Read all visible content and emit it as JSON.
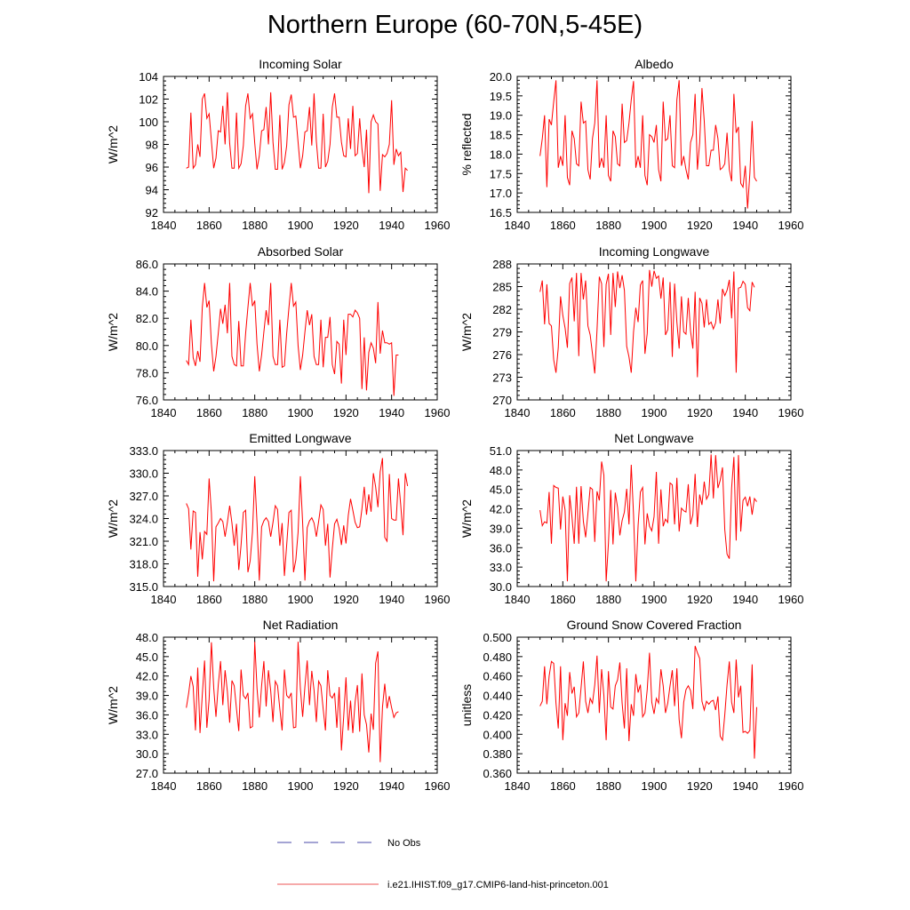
{
  "title": "Northern Europe (60-70N,5-45E)",
  "legend": [
    {
      "label": "No Obs",
      "color": "#4a4aa8",
      "dash": "dashed"
    },
    {
      "label": "i.e21.IHIST.f09_g17.CMIP6-land-hist-princeton.001",
      "color": "#ee5555",
      "dash": "solid"
    }
  ],
  "chart_data": [
    {
      "type": "line",
      "title": "Incoming Solar",
      "ylabel": "W/m^2",
      "xlim": [
        1840,
        1960
      ],
      "ylim": [
        92,
        104
      ],
      "xticks": [
        1840,
        1860,
        1880,
        1900,
        1920,
        1940,
        1960
      ],
      "yticks": [
        "92",
        "94",
        "96",
        "98",
        "100",
        "102",
        "104"
      ],
      "x_start": 1850,
      "values": [
        95.9,
        96.0,
        100.8,
        95.9,
        96.2,
        98.0,
        96.9,
        102.0,
        102.5,
        100.3,
        100.7,
        98.3,
        95.9,
        96.8,
        99.2,
        99.1,
        101.4,
        98.0,
        102.6,
        98.1,
        95.9,
        95.9,
        100.8,
        95.9,
        96.3,
        97.9,
        101.4,
        102.5,
        100.3,
        100.7,
        98.1,
        95.8,
        97.0,
        99.2,
        99.3,
        101.3,
        98.0,
        102.6,
        98.2,
        95.8,
        95.8,
        100.6,
        95.8,
        96.4,
        97.9,
        101.5,
        102.4,
        100.4,
        100.5,
        98.2,
        95.9,
        97.0,
        99.1,
        99.2,
        101.3,
        97.9,
        102.5,
        98.3,
        95.9,
        95.9,
        100.7,
        96.0,
        96.5,
        98.0,
        101.3,
        102.5,
        100.4,
        100.4,
        98.2,
        97.0,
        96.9,
        100.3,
        97.6,
        101.4,
        97.0,
        97.2,
        100.3,
        97.6,
        96.0,
        99.3,
        93.7,
        100.0,
        100.6,
        100.0,
        99.8,
        93.9,
        97.1,
        96.9,
        97.2,
        98.0,
        101.9,
        96.2,
        97.6,
        97.0,
        97.3,
        93.8,
        95.9,
        95.7
      ]
    },
    {
      "type": "line",
      "title": "Albedo",
      "ylabel": "% reflected",
      "xlim": [
        1840,
        1960
      ],
      "ylim": [
        16.5,
        20.0
      ],
      "xticks": [
        1840,
        1860,
        1880,
        1900,
        1920,
        1940,
        1960
      ],
      "yticks": [
        "16.5",
        "17.0",
        "17.5",
        "18.0",
        "18.5",
        "19.0",
        "19.5",
        "20.0"
      ],
      "x_start": 1850,
      "values": [
        17.95,
        18.4,
        19.0,
        17.15,
        18.9,
        18.75,
        19.35,
        19.9,
        17.65,
        17.95,
        17.7,
        19.0,
        17.4,
        17.2,
        18.6,
        18.4,
        17.75,
        17.7,
        19.35,
        18.8,
        18.85,
        17.6,
        17.35,
        18.4,
        18.8,
        19.9,
        17.65,
        17.9,
        17.65,
        19.0,
        17.45,
        17.3,
        18.6,
        18.45,
        17.75,
        17.7,
        19.3,
        18.3,
        18.35,
        18.8,
        19.4,
        19.88,
        17.65,
        17.95,
        17.65,
        19.0,
        17.45,
        17.2,
        18.5,
        18.45,
        18.3,
        18.75,
        17.6,
        17.3,
        19.35,
        18.35,
        18.4,
        19.0,
        17.7,
        17.65,
        19.4,
        19.9,
        17.7,
        17.95,
        17.6,
        17.35,
        18.3,
        18.5,
        19.55,
        17.6,
        18.3,
        19.7,
        18.85,
        17.7,
        17.7,
        18.1,
        18.1,
        18.75,
        18.4,
        17.6,
        17.65,
        17.75,
        18.55,
        17.6,
        17.3,
        19.55,
        18.55,
        18.7,
        17.25,
        17.15,
        17.7,
        16.6,
        17.5,
        18.85,
        17.4,
        17.3
      ]
    },
    {
      "type": "line",
      "title": "Absorbed Solar",
      "ylabel": "W/m^2",
      "xlim": [
        1840,
        1960
      ],
      "ylim": [
        76.0,
        86.0
      ],
      "xticks": [
        1840,
        1860,
        1880,
        1900,
        1920,
        1940,
        1960
      ],
      "yticks": [
        "76.0",
        "78.0",
        "80.0",
        "82.0",
        "84.0",
        "86.0"
      ],
      "x_start": 1850,
      "values": [
        78.9,
        78.6,
        81.9,
        79.1,
        78.5,
        79.6,
        78.8,
        82.8,
        84.6,
        82.8,
        83.3,
        80.1,
        78.1,
        79.2,
        80.9,
        82.7,
        81.6,
        83.0,
        80.9,
        84.6,
        79.2,
        78.6,
        78.5,
        81.8,
        78.5,
        78.5,
        80.9,
        82.8,
        84.6,
        82.9,
        83.3,
        80.1,
        78.1,
        79.3,
        81.0,
        82.6,
        81.5,
        84.6,
        79.2,
        78.6,
        78.6,
        81.9,
        78.4,
        78.5,
        80.9,
        82.8,
        84.6,
        82.9,
        83.2,
        80.0,
        78.2,
        79.3,
        81.0,
        82.6,
        81.5,
        82.3,
        79.2,
        78.6,
        78.6,
        81.9,
        78.4,
        80.6,
        80.6,
        82.1,
        78.6,
        77.9,
        80.3,
        80.1,
        77.2,
        81.9,
        79.3,
        82.3,
        82.3,
        82.1,
        82.6,
        82.4,
        82.0,
        76.8,
        80.6,
        76.7,
        79.5,
        80.2,
        79.8,
        78.7,
        83.2,
        79.4,
        81.1,
        80.2,
        80.2,
        80.1,
        80.2,
        76.3,
        79.3,
        79.3
      ]
    },
    {
      "type": "line",
      "title": "Incoming Longwave",
      "ylabel": "W/m^2",
      "xlim": [
        1840,
        1960
      ],
      "ylim": [
        270,
        288
      ],
      "xticks": [
        1840,
        1860,
        1880,
        1900,
        1920,
        1940,
        1960
      ],
      "yticks": [
        "270",
        "273",
        "276",
        "279",
        "282",
        "285",
        "288"
      ],
      "x_start": 1850,
      "values": [
        284.3,
        285.8,
        280.0,
        285.3,
        280.1,
        279.8,
        275.3,
        273.6,
        276.9,
        283.7,
        281.2,
        279.5,
        276.9,
        285.4,
        286.2,
        280.4,
        286.8,
        275.8,
        286.8,
        283.3,
        285.8,
        279.8,
        278.6,
        276.1,
        273.5,
        279.3,
        286.3,
        285.4,
        277.0,
        285.3,
        286.7,
        278.6,
        286.8,
        282.3,
        287.0,
        284.8,
        286.5,
        284.5,
        277.1,
        275.7,
        273.6,
        279.0,
        282.2,
        280.3,
        285.2,
        285.8,
        276.1,
        278.8,
        287.2,
        285.0,
        287.1,
        286.1,
        286.4,
        283.4,
        286.2,
        278.6,
        279.3,
        285.6,
        275.7,
        285.4,
        280.3,
        276.8,
        283.7,
        279.0,
        278.7,
        283.5,
        279.1,
        276.8,
        284.3,
        273.0,
        283.5,
        282.8,
        279.6,
        283.3,
        280.0,
        280.3,
        279.4,
        280.2,
        283.3,
        280.1,
        284.7,
        283.8,
        284.5,
        285.9,
        280.8,
        287.0,
        273.6,
        284.8,
        284.9,
        285.7,
        285.3,
        282.2,
        281.8,
        285.6,
        284.9
      ]
    },
    {
      "type": "line",
      "title": "Emitted Longwave",
      "ylabel": "W/m^2",
      "xlim": [
        1840,
        1960
      ],
      "ylim": [
        315.0,
        333.0
      ],
      "xticks": [
        1840,
        1860,
        1880,
        1900,
        1920,
        1940,
        1960
      ],
      "yticks": [
        "315.0",
        "318.0",
        "321.0",
        "324.0",
        "327.0",
        "330.0",
        "333.0"
      ],
      "x_start": 1850,
      "values": [
        326.0,
        325.3,
        319.9,
        325.0,
        324.8,
        316.3,
        322.2,
        318.6,
        322.3,
        321.9,
        329.3,
        324.7,
        315.7,
        322.9,
        323.4,
        324.0,
        323.6,
        321.6,
        323.5,
        325.7,
        323.4,
        320.4,
        323.3,
        317.2,
        320.5,
        324.8,
        325.1,
        316.9,
        318.4,
        322.2,
        329.6,
        323.4,
        315.8,
        322.9,
        323.7,
        324.1,
        323.6,
        321.6,
        323.5,
        325.7,
        325.2,
        320.4,
        323.4,
        316.4,
        320.5,
        324.8,
        325.1,
        316.9,
        318.5,
        322.2,
        329.6,
        323.4,
        315.8,
        322.8,
        323.7,
        324.1,
        323.4,
        321.6,
        323.6,
        325.8,
        325.2,
        320.4,
        323.3,
        316.2,
        320.0,
        323.3,
        323.9,
        322.7,
        320.5,
        323.1,
        320.7,
        324.4,
        326.6,
        325.1,
        323.5,
        322.8,
        322.9,
        325.3,
        328.2,
        324.5,
        327.2,
        324.9,
        330.0,
        328.2,
        325.5,
        330.2,
        332.0,
        321.5,
        321.0,
        329.9,
        324.0,
        323.8,
        323.8,
        329.3,
        325.8,
        321.8,
        330.0,
        328.3
      ]
    },
    {
      "type": "line",
      "title": "Net Longwave",
      "ylabel": "W/m^2",
      "xlim": [
        1840,
        1960
      ],
      "ylim": [
        30.0,
        51.0
      ],
      "xticks": [
        1840,
        1860,
        1880,
        1900,
        1920,
        1940,
        1960
      ],
      "yticks": [
        "30.0",
        "33.0",
        "36.0",
        "39.0",
        "42.0",
        "45.0",
        "48.0",
        "51.0"
      ],
      "x_start": 1850,
      "values": [
        41.8,
        39.4,
        40.0,
        39.8,
        44.6,
        36.6,
        45.6,
        45.3,
        45.2,
        38.8,
        43.9,
        41.8,
        30.8,
        44.1,
        40.8,
        36.6,
        45.4,
        36.6,
        45.5,
        40.1,
        37.6,
        41.3,
        45.3,
        45.0,
        36.9,
        44.7,
        43.3,
        49.3,
        47.2,
        30.8,
        36.7,
        44.9,
        36.5,
        44.5,
        42.2,
        37.9,
        40.2,
        41.5,
        45.1,
        39.6,
        48.8,
        41.1,
        30.8,
        39.4,
        44.6,
        45.3,
        36.5,
        41.3,
        39.3,
        38.6,
        40.8,
        47.7,
        36.6,
        45.0,
        39.3,
        40.4,
        39.9,
        46.0,
        45.7,
        39.6,
        46.8,
        38.5,
        42.1,
        41.7,
        41.5,
        45.8,
        39.6,
        41.1,
        47.4,
        39.2,
        44.2,
        42.6,
        46.2,
        43.5,
        44.2,
        50.4,
        43.6,
        50.3,
        45.2,
        46.4,
        48.4,
        38.8,
        35.0,
        34.3,
        45.2,
        50.0,
        37.1,
        50.3,
        38.5,
        43.3,
        43.8,
        42.4,
        43.9,
        41.1,
        43.6,
        43.1
      ]
    },
    {
      "type": "line",
      "title": "Net Radiation",
      "ylabel": "W/m^2",
      "xlim": [
        1840,
        1960
      ],
      "ylim": [
        27.0,
        48.0
      ],
      "xticks": [
        1840,
        1860,
        1880,
        1900,
        1920,
        1940,
        1960
      ],
      "yticks": [
        "27.0",
        "30.0",
        "33.0",
        "36.0",
        "39.0",
        "42.0",
        "45.0",
        "48.0"
      ],
      "x_start": 1850,
      "values": [
        37.1,
        39.3,
        42.0,
        40.4,
        33.6,
        43.3,
        33.2,
        39.1,
        44.4,
        34.0,
        38.4,
        47.2,
        40.2,
        35.7,
        40.6,
        44.3,
        37.5,
        42.9,
        39.6,
        34.8,
        41.3,
        40.5,
        36.9,
        33.5,
        43.0,
        39.0,
        38.5,
        39.4,
        34.0,
        34.2,
        47.3,
        40.1,
        35.6,
        40.5,
        44.3,
        37.3,
        42.9,
        39.7,
        34.9,
        41.2,
        40.5,
        36.9,
        33.6,
        43.0,
        39.0,
        38.6,
        39.4,
        34.0,
        34.1,
        47.3,
        40.1,
        35.7,
        40.4,
        44.4,
        37.5,
        42.8,
        39.8,
        34.9,
        41.2,
        40.5,
        36.9,
        33.6,
        42.9,
        39.0,
        38.6,
        39.4,
        34.0,
        40.3,
        30.5,
        35.8,
        41.8,
        33.6,
        38.2,
        33.2,
        38.0,
        40.6,
        33.4,
        42.4,
        36.0,
        34.5,
        30.2,
        36.2,
        33.7,
        44.0,
        45.8,
        28.7,
        37.2,
        40.8,
        37.0,
        38.9,
        37.1,
        35.6,
        36.3,
        36.5
      ]
    },
    {
      "type": "line",
      "title": "Ground Snow Covered Fraction",
      "ylabel": "unitless",
      "xlim": [
        1840,
        1960
      ],
      "ylim": [
        0.36,
        0.5
      ],
      "xticks": [
        1840,
        1860,
        1880,
        1900,
        1920,
        1940,
        1960
      ],
      "yticks": [
        "0.360",
        "0.380",
        "0.400",
        "0.420",
        "0.440",
        "0.460",
        "0.480",
        "0.500"
      ],
      "x_start": 1850,
      "values": [
        0.429,
        0.434,
        0.47,
        0.431,
        0.46,
        0.475,
        0.473,
        0.432,
        0.406,
        0.47,
        0.394,
        0.432,
        0.419,
        0.464,
        0.442,
        0.449,
        0.418,
        0.422,
        0.448,
        0.475,
        0.434,
        0.422,
        0.437,
        0.432,
        0.451,
        0.481,
        0.422,
        0.467,
        0.44,
        0.394,
        0.465,
        0.428,
        0.426,
        0.45,
        0.456,
        0.474,
        0.432,
        0.406,
        0.468,
        0.393,
        0.431,
        0.419,
        0.462,
        0.443,
        0.451,
        0.418,
        0.422,
        0.446,
        0.484,
        0.433,
        0.421,
        0.437,
        0.432,
        0.467,
        0.45,
        0.422,
        0.432,
        0.45,
        0.466,
        0.429,
        0.468,
        0.415,
        0.396,
        0.433,
        0.446,
        0.45,
        0.445,
        0.426,
        0.491,
        0.484,
        0.478,
        0.434,
        0.425,
        0.434,
        0.431,
        0.434,
        0.435,
        0.425,
        0.439,
        0.398,
        0.394,
        0.42,
        0.451,
        0.475,
        0.433,
        0.422,
        0.477,
        0.438,
        0.45,
        0.402,
        0.403,
        0.401,
        0.404,
        0.472,
        0.375,
        0.428
      ]
    }
  ]
}
